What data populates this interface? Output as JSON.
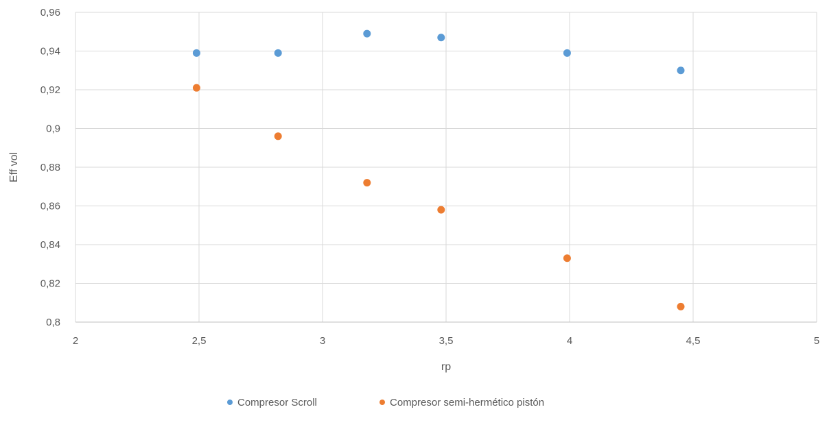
{
  "chart_data": {
    "type": "scatter",
    "xlabel": "rp",
    "ylabel": "Eff vol",
    "xlim": [
      2,
      5
    ],
    "ylim": [
      0.8,
      0.96
    ],
    "x_ticks": [
      {
        "value": 2,
        "label": "2"
      },
      {
        "value": 2.5,
        "label": "2,5"
      },
      {
        "value": 3,
        "label": "3"
      },
      {
        "value": 3.5,
        "label": "3,5"
      },
      {
        "value": 4,
        "label": "4"
      },
      {
        "value": 4.5,
        "label": "4,5"
      },
      {
        "value": 5,
        "label": "5"
      }
    ],
    "y_ticks": [
      {
        "value": 0.8,
        "label": "0,8"
      },
      {
        "value": 0.82,
        "label": "0,82"
      },
      {
        "value": 0.84,
        "label": "0,84"
      },
      {
        "value": 0.86,
        "label": "0,86"
      },
      {
        "value": 0.88,
        "label": "0,88"
      },
      {
        "value": 0.9,
        "label": "0,9"
      },
      {
        "value": 0.92,
        "label": "0,92"
      },
      {
        "value": 0.94,
        "label": "0,94"
      },
      {
        "value": 0.96,
        "label": "0,96"
      }
    ],
    "grid": true,
    "legend_position": "bottom",
    "series": [
      {
        "name": "Compresor Scroll",
        "color": "#5b9bd5",
        "points": [
          {
            "x": 2.49,
            "y": 0.939
          },
          {
            "x": 2.82,
            "y": 0.939
          },
          {
            "x": 3.18,
            "y": 0.949
          },
          {
            "x": 3.48,
            "y": 0.947
          },
          {
            "x": 3.99,
            "y": 0.939
          },
          {
            "x": 4.45,
            "y": 0.93
          }
        ]
      },
      {
        "name": "Compresor semi-hermético pistón",
        "color": "#ed7d31",
        "points": [
          {
            "x": 2.49,
            "y": 0.921
          },
          {
            "x": 2.82,
            "y": 0.896
          },
          {
            "x": 3.18,
            "y": 0.872
          },
          {
            "x": 3.48,
            "y": 0.858
          },
          {
            "x": 3.99,
            "y": 0.833
          },
          {
            "x": 4.45,
            "y": 0.808
          }
        ]
      }
    ]
  }
}
